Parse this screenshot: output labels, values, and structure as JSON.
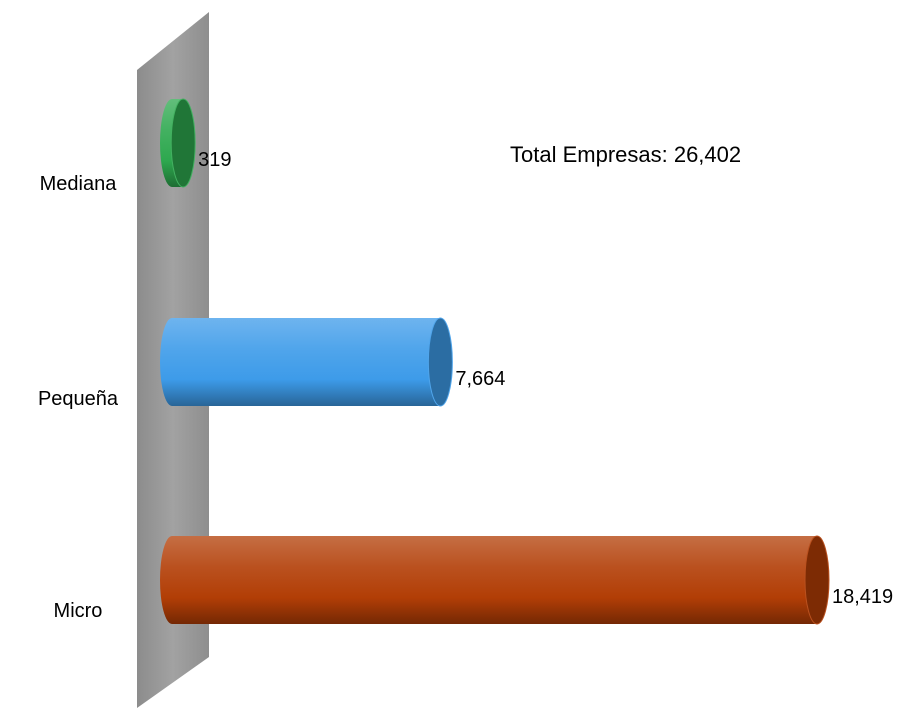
{
  "chart_data": {
    "type": "bar",
    "orientation": "horizontal",
    "style": "3d-cylinder",
    "categories": [
      "Mediana",
      "Pequeña",
      "Micro"
    ],
    "values": [
      319,
      7664,
      18419
    ],
    "value_labels": [
      "319",
      "7,664",
      "18,419"
    ],
    "xlim": [
      0,
      18419
    ],
    "annotation": "Total Empresas: 26,402",
    "grid": false,
    "legend": "none",
    "colors": {
      "Mediana": "#2ea84f",
      "Pequeña": "#3d9be9",
      "Micro": "#b23e06",
      "wall": "#9a9a9a"
    }
  }
}
